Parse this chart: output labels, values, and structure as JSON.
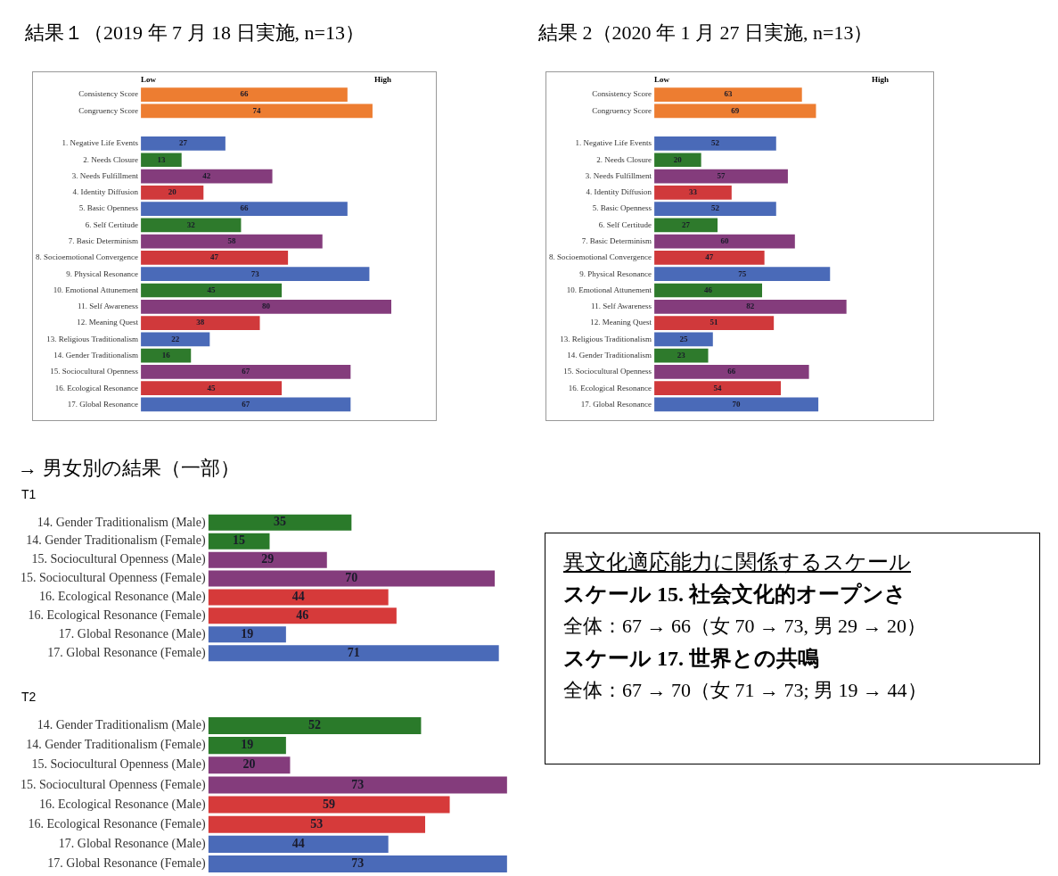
{
  "chart_data": [
    {
      "type": "bar",
      "orientation": "horizontal",
      "title": "結果１（2019 年 7 月 18 日実施, n=13）",
      "categories": [
        "Consistency Score",
        "Congruency Score",
        null,
        "1. Negative Life Events",
        "2. Needs Closure",
        "3. Needs Fulfillment",
        "4. Identity Diffusion",
        "5. Basic Openness",
        "6. Self Certitude",
        "7. Basic Determinism",
        "8. Socioemotional Convergence",
        "9. Physical Resonance",
        "10. Emotional Attunement",
        "11. Self Awareness",
        "12. Meaning Quest",
        "13. Religious Traditionalism",
        "14. Gender Traditionalism",
        "15. Sociocultural Openness",
        "16. Ecological Resonance",
        "17. Global Resonance"
      ],
      "values": [
        66,
        74,
        null,
        27,
        13,
        42,
        20,
        66,
        32,
        58,
        47,
        73,
        45,
        80,
        38,
        22,
        16,
        67,
        45,
        67
      ],
      "colors": [
        "#ed7d31",
        "#ed7d31",
        "#ffffff",
        "#4a6ab8",
        "#2e7a2c",
        "#843c7c",
        "#d0393b",
        "#4a6ab8",
        "#2e7a2c",
        "#843c7c",
        "#d0393b",
        "#4a6ab8",
        "#2e7a2c",
        "#843c7c",
        "#d0393b",
        "#4a6ab8",
        "#2e7a2c",
        "#843c7c",
        "#d0393b",
        "#4a6ab8"
      ],
      "annotations": [
        "Low",
        "High"
      ],
      "tick_labels": "y",
      "data_labels": true,
      "legend": false
    },
    {
      "type": "bar",
      "orientation": "horizontal",
      "title": "結果 2（2020 年 1 月 27 日実施, n=13）",
      "categories": [
        "Consistency Score",
        "Congruency Score",
        null,
        "1. Negative Life Events",
        "2. Needs Closure",
        "3. Needs Fulfillment",
        "4. Identity Diffusion",
        "5. Basic Openness",
        "6. Self Certitude",
        "7. Basic Determinism",
        "8. Socioemotional Convergence",
        "9. Physical Resonance",
        "10. Emotional Attunement",
        "11. Self Awareness",
        "12. Meaning Quest",
        "13. Religious Traditionalism",
        "14. Gender Traditionalism",
        "15. Sociocultural Openness",
        "16. Ecological Resonance",
        "17. Global Resonance"
      ],
      "values": [
        63,
        69,
        null,
        52,
        20,
        57,
        33,
        52,
        27,
        60,
        47,
        75,
        46,
        82,
        51,
        25,
        23,
        66,
        54,
        70
      ],
      "colors": [
        "#ed7d31",
        "#ed7d31",
        "#ffffff",
        "#4a6ab8",
        "#2e7a2c",
        "#843c7c",
        "#d0393b",
        "#4a6ab8",
        "#2e7a2c",
        "#843c7c",
        "#d0393b",
        "#4a6ab8",
        "#2e7a2c",
        "#843c7c",
        "#d0393b",
        "#4a6ab8",
        "#2e7a2c",
        "#843c7c",
        "#d0393b",
        "#4a6ab8"
      ],
      "annotations": [
        "Low",
        "High"
      ],
      "tick_labels": "y",
      "data_labels": true,
      "legend": false
    },
    {
      "type": "bar",
      "orientation": "horizontal",
      "title": "T1",
      "annotations": [
        "→ 男女別の結果（一部）"
      ],
      "categories": [
        "14. Gender Traditionalism (Male)",
        "14. Gender Traditionalism (Female)",
        "15. Sociocultural Openness (Male)",
        "15. Sociocultural Openness (Female)",
        "16. Ecological Resonance (Male)",
        "16. Ecological Resonance (Female)",
        "17. Global Resonance (Male)",
        "17. Global Resonance (Female)"
      ],
      "values": [
        35,
        15,
        29,
        70,
        44,
        46,
        19,
        71
      ],
      "colors": [
        "#2a7a2a",
        "#2a7a2a",
        "#843c7c",
        "#843c7c",
        "#d63a3a",
        "#d63a3a",
        "#4a6ab8",
        "#4a6ab8"
      ],
      "tick_labels": "y",
      "data_labels": true,
      "legend": false
    },
    {
      "type": "bar",
      "orientation": "horizontal",
      "title": "T2",
      "categories": [
        "14. Gender Traditionalism (Male)",
        "14. Gender Traditionalism (Female)",
        "15. Sociocultural Openness (Male)",
        "15. Sociocultural Openness (Female)",
        "16. Ecological Resonance (Male)",
        "16. Ecological Resonance (Female)",
        "17. Global Resonance (Male)",
        "17. Global Resonance (Female)"
      ],
      "values": [
        52,
        19,
        20,
        73,
        59,
        53,
        44,
        73
      ],
      "colors": [
        "#2a7a2a",
        "#2a7a2a",
        "#843c7c",
        "#843c7c",
        "#d63a3a",
        "#d63a3a",
        "#4a6ab8",
        "#4a6ab8"
      ],
      "tick_labels": "y",
      "data_labels": true,
      "legend": false
    },
    {
      "type": "other",
      "title": "異文化適応能力に関係するスケール",
      "annotations": [
        "スケール 15. 社会文化的オープンさ",
        "全体：67 → 66（女 70 → 73, 男 29 → 20）",
        "スケール 17. 世界との共鳴",
        "全体：67 → 70（女 71 → 73; 男 19 → 44）"
      ]
    }
  ]
}
